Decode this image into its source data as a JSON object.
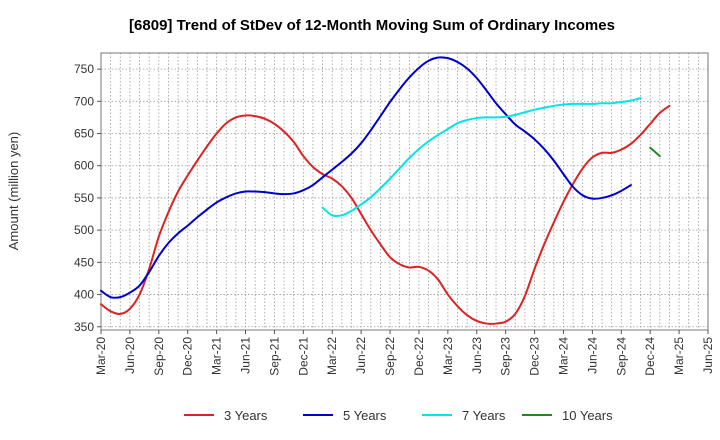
{
  "chart_data": {
    "type": "line",
    "title": "[6809]  Trend of StDev of 12-Month Moving Sum of Ordinary Incomes",
    "ylabel": "Amount (million yen)",
    "xlabel": "",
    "ylim": [
      345,
      775
    ],
    "yticks": [
      350,
      400,
      450,
      500,
      550,
      600,
      650,
      700,
      750
    ],
    "xlim": [
      "2020-03",
      "2025-06"
    ],
    "x_tick_labels": [
      "Mar-20",
      "Jun-20",
      "Sep-20",
      "Dec-20",
      "Mar-21",
      "Jun-21",
      "Sep-21",
      "Dec-21",
      "Mar-22",
      "Jun-22",
      "Sep-22",
      "Dec-22",
      "Mar-23",
      "Jun-23",
      "Sep-23",
      "Dec-23",
      "Mar-24",
      "Jun-24",
      "Sep-24",
      "Dec-24",
      "Mar-25",
      "Jun-25"
    ],
    "grid": true,
    "legend_position": "bottom",
    "series": [
      {
        "name": "3 Years",
        "color": "#dd2222",
        "start": "2020-03",
        "values": [
          385,
          374,
          370,
          378,
          400,
          440,
          490,
          528,
          560,
          585,
          608,
          630,
          650,
          666,
          675,
          678,
          677,
          673,
          665,
          653,
          637,
          615,
          598,
          587,
          580,
          568,
          550,
          525,
          500,
          478,
          458,
          447,
          442,
          443,
          437,
          423,
          400,
          382,
          368,
          359,
          355,
          355,
          358,
          370,
          398,
          440,
          478,
          512,
          544,
          572,
          596,
          613,
          620,
          620,
          625,
          634,
          648,
          665,
          682,
          693
        ]
      },
      {
        "name": "5 Years",
        "color": "#0000cc",
        "start": "2020-03",
        "values": [
          406,
          396,
          396,
          403,
          414,
          435,
          460,
          480,
          495,
          507,
          520,
          532,
          543,
          551,
          557,
          560,
          560,
          559,
          557,
          556,
          557,
          562,
          570,
          582,
          594,
          606,
          619,
          635,
          655,
          677,
          699,
          719,
          737,
          752,
          763,
          768,
          767,
          761,
          751,
          736,
          717,
          697,
          680,
          664,
          653,
          641,
          626,
          608,
          587,
          567,
          554,
          549,
          550,
          554,
          561,
          570
        ]
      },
      {
        "name": "7 Years",
        "color": "#00e5e5",
        "start": "2022-02",
        "values": [
          535,
          523,
          523,
          530,
          540,
          551,
          565,
          580,
          596,
          612,
          626,
          638,
          648,
          657,
          666,
          671,
          674,
          675,
          675,
          676,
          679,
          683,
          687,
          690,
          693,
          695,
          696,
          696,
          696,
          697,
          697,
          699,
          701,
          705
        ]
      },
      {
        "name": "10 Years",
        "color": "#228822",
        "start": "2024-12",
        "values": [
          628,
          615
        ]
      }
    ]
  }
}
